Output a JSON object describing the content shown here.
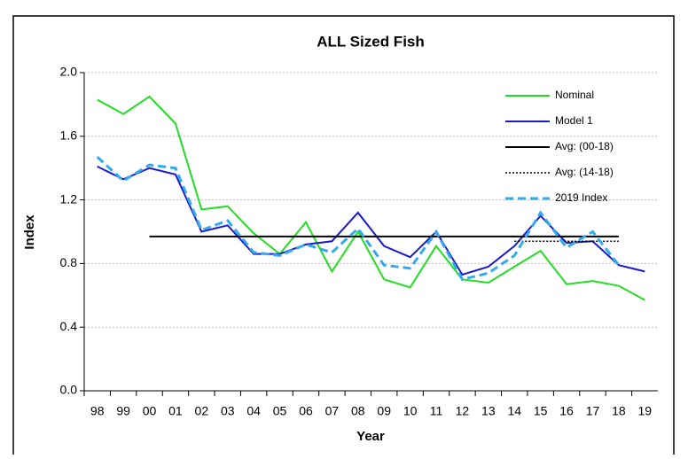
{
  "chart_data": {
    "type": "line",
    "title": "ALL Sized Fish",
    "x_label": "Year",
    "y_label": "Index",
    "categories": [
      "98",
      "99",
      "00",
      "01",
      "02",
      "03",
      "04",
      "05",
      "06",
      "07",
      "08",
      "09",
      "10",
      "11",
      "12",
      "13",
      "14",
      "15",
      "16",
      "17",
      "18",
      "19"
    ],
    "series": [
      {
        "name": "Nominal",
        "color": "#22dd22",
        "linestyle": "solid",
        "values": [
          1.83,
          1.74,
          1.85,
          1.68,
          1.14,
          1.16,
          0.99,
          0.86,
          1.06,
          0.75,
          1.0,
          0.7,
          0.65,
          0.91,
          0.7,
          0.68,
          0.78,
          0.88,
          0.67,
          0.69,
          0.66,
          0.57
        ]
      },
      {
        "name": "Model 1",
        "color": "#1a1acc",
        "linestyle": "solid",
        "values": [
          1.41,
          1.33,
          1.4,
          1.36,
          1.0,
          1.04,
          0.86,
          0.86,
          0.92,
          0.94,
          1.12,
          0.91,
          0.84,
          1.0,
          0.73,
          0.78,
          0.91,
          1.1,
          0.93,
          0.94,
          0.79,
          0.75
        ]
      },
      {
        "name": "Avg: (00-18)",
        "color": "#000000",
        "linestyle": "solid",
        "values": [
          null,
          null,
          0.97,
          0.97,
          0.97,
          0.97,
          0.97,
          0.97,
          0.97,
          0.97,
          0.97,
          0.97,
          0.97,
          0.97,
          0.97,
          0.97,
          0.97,
          0.97,
          0.97,
          0.97,
          0.97,
          null
        ]
      },
      {
        "name": "Avg: (14-18)",
        "color": "#000000",
        "linestyle": "dotted",
        "values": [
          null,
          null,
          null,
          null,
          null,
          null,
          null,
          null,
          null,
          null,
          null,
          null,
          null,
          null,
          null,
          null,
          0.94,
          0.94,
          0.94,
          0.94,
          0.94,
          null
        ]
      },
      {
        "name": "2019 Index",
        "color": "#33aaee",
        "linestyle": "dashed",
        "values": [
          1.47,
          1.32,
          1.42,
          1.4,
          1.01,
          1.07,
          0.87,
          0.85,
          0.92,
          0.87,
          1.02,
          0.79,
          0.77,
          1.0,
          0.7,
          0.74,
          0.85,
          1.12,
          0.9,
          1.0,
          0.79,
          null
        ]
      }
    ],
    "ylim": [
      0,
      2
    ],
    "yticks": [
      {
        "value": 0,
        "label": "0.0"
      },
      0.4,
      0.8,
      1.2,
      1.6,
      {
        "value": 2,
        "label": "2.0"
      }
    ],
    "grid": true,
    "legend": "top-right"
  }
}
